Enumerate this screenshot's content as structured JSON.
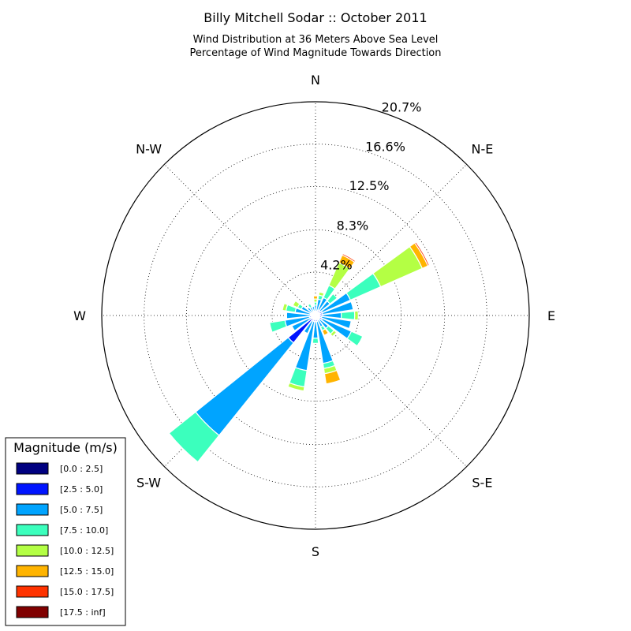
{
  "chart_data": {
    "type": "windrose",
    "title": "Billy Mitchell Sodar :: October 2011",
    "subtitle_lines": [
      "Wind Distribution at 36 Meters Above Sea Level",
      "Percentage of Wind Magnitude Towards Direction"
    ],
    "r_max": 20.7,
    "ring_values": [
      4.2,
      8.3,
      12.5,
      16.6,
      20.7
    ],
    "ring_labels": [
      "4.2%",
      "8.3%",
      "12.5%",
      "16.6%",
      "20.7%"
    ],
    "direction_labels": [
      {
        "label": "N",
        "angle": 0
      },
      {
        "label": "N-E",
        "angle": 45
      },
      {
        "label": "E",
        "angle": 90
      },
      {
        "label": "S-E",
        "angle": 135
      },
      {
        "label": "S",
        "angle": 180
      },
      {
        "label": "S-W",
        "angle": 225
      },
      {
        "label": "W",
        "angle": 270
      },
      {
        "label": "N-W",
        "angle": 315
      }
    ],
    "legend": {
      "title": "Magnitude (m/s)",
      "bins": [
        {
          "label": "[0.0 : 2.5]",
          "color": "#000080"
        },
        {
          "label": "[2.5 : 5.0]",
          "color": "#0014ff"
        },
        {
          "label": "[5.0 : 7.5]",
          "color": "#00a4ff"
        },
        {
          "label": "[7.5 : 10.0]",
          "color": "#3bffbd"
        },
        {
          "label": "[10.0 : 12.5]",
          "color": "#b4ff44"
        },
        {
          "label": "[12.5 : 15.0]",
          "color": "#ffb400"
        },
        {
          "label": "[15.0 : 17.5]",
          "color": "#ff3300"
        },
        {
          "label": "[17.5 : inf]",
          "color": "#800000"
        }
      ]
    },
    "sectors": [
      {
        "direction": 0,
        "values": [
          0.1,
          0.3,
          0.6,
          0.3,
          0.3,
          0.3,
          0.0,
          0.0
        ]
      },
      {
        "direction": 15,
        "values": [
          0.1,
          0.3,
          1.2,
          0.4,
          0.3,
          0.0,
          0.0,
          0.0
        ]
      },
      {
        "direction": 30,
        "values": [
          0.1,
          0.5,
          1.3,
          1.3,
          2.4,
          0.8,
          0.15,
          0.0
        ]
      },
      {
        "direction": 45,
        "values": [
          0.1,
          0.5,
          1.2,
          0.9,
          0.0,
          0.0,
          0.0,
          0.0
        ]
      },
      {
        "direction": 60,
        "values": [
          0.1,
          0.6,
          3.0,
          3.2,
          4.4,
          0.6,
          0.15,
          0.0
        ]
      },
      {
        "direction": 75,
        "values": [
          0.1,
          0.6,
          3.0,
          0.0,
          0.0,
          0.0,
          0.0,
          0.0
        ]
      },
      {
        "direction": 90,
        "values": [
          0.1,
          0.6,
          1.8,
          1.3,
          0.35,
          0.0,
          0.0,
          0.0
        ]
      },
      {
        "direction": 105,
        "values": [
          0.1,
          0.5,
          2.9,
          0.0,
          0.0,
          0.0,
          0.0,
          0.0
        ]
      },
      {
        "direction": 120,
        "values": [
          0.1,
          0.6,
          3.1,
          1.2,
          0.0,
          0.0,
          0.0,
          0.0
        ]
      },
      {
        "direction": 135,
        "values": [
          0.1,
          0.4,
          1.1,
          0.7,
          0.3,
          0.0,
          0.0,
          0.0
        ]
      },
      {
        "direction": 150,
        "values": [
          0.1,
          0.4,
          0.7,
          0.4,
          0.0,
          0.5,
          0.0,
          0.0
        ]
      },
      {
        "direction": 165,
        "values": [
          0.1,
          0.5,
          4.1,
          0.5,
          0.5,
          1.0,
          0.0,
          0.0
        ]
      },
      {
        "direction": 180,
        "values": [
          0.1,
          0.5,
          1.6,
          0.5,
          0.0,
          0.0,
          0.0,
          0.0
        ]
      },
      {
        "direction": 195,
        "values": [
          0.1,
          0.5,
          4.8,
          1.6,
          0.4,
          0.0,
          0.0,
          0.0
        ]
      },
      {
        "direction": 210,
        "values": [
          0.1,
          0.5,
          1.3,
          0.0,
          0.0,
          0.0,
          0.0,
          0.0
        ]
      },
      {
        "direction": 225,
        "values": [
          0.1,
          3.3,
          11.5,
          3.3,
          0.0,
          0.0,
          0.0,
          0.0
        ]
      },
      {
        "direction": 240,
        "values": [
          0.1,
          0.4,
          2.0,
          0.0,
          0.0,
          0.0,
          0.0,
          0.0
        ]
      },
      {
        "direction": 255,
        "values": [
          0.1,
          0.5,
          2.4,
          1.5,
          0.0,
          0.0,
          0.0,
          0.0
        ]
      },
      {
        "direction": 270,
        "values": [
          0.1,
          0.4,
          2.3,
          0.0,
          0.0,
          0.0,
          0.0,
          0.0
        ]
      },
      {
        "direction": 285,
        "values": [
          0.1,
          0.4,
          1.5,
          0.9,
          0.35,
          0.0,
          0.0,
          0.0
        ]
      },
      {
        "direction": 300,
        "values": [
          0.1,
          0.4,
          1.0,
          0.4,
          0.5,
          0.0,
          0.0,
          0.0
        ]
      },
      {
        "direction": 315,
        "values": [
          0.1,
          0.3,
          0.6,
          0.0,
          0.0,
          0.0,
          0.0,
          0.0
        ]
      },
      {
        "direction": 330,
        "values": [
          0.1,
          0.3,
          0.5,
          0.35,
          0.0,
          0.0,
          0.0,
          0.0
        ]
      },
      {
        "direction": 345,
        "values": [
          0.1,
          0.3,
          0.5,
          0.0,
          0.0,
          0.0,
          0.0,
          0.0
        ]
      }
    ]
  }
}
